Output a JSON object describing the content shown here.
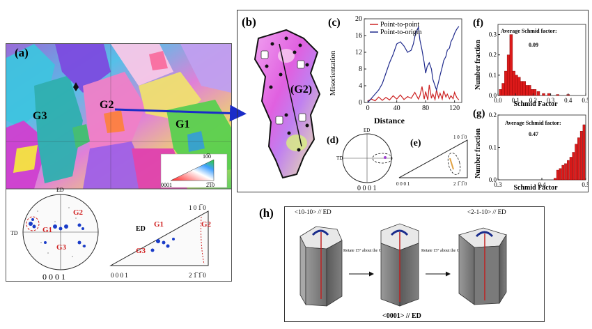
{
  "panel_a": {
    "label": "(a)",
    "grains": [
      "G1",
      "G2",
      "G3"
    ],
    "ipf_key": {
      "top": "10̅0",
      "left": "0001",
      "right": "2̅1̅0"
    },
    "pole_figure": {
      "td": "TD",
      "ed": "ED",
      "bottom": "0 0 0 1",
      "g1": "G1",
      "g2": "G2",
      "g3": "G3"
    },
    "ipf_triangle": {
      "ed": "ED",
      "top": "1 0 1̅ 0",
      "left": "0 0 0 1",
      "right": "2 1̅ 1̅ 0",
      "g1": "G1",
      "g2": "G2",
      "g3": "G3"
    }
  },
  "panel_b": {
    "label": "(b)",
    "grain": "(G2)"
  },
  "panel_c": {
    "label": "(c)",
    "legend": [
      "Point-to-point",
      "Point-to-origin"
    ],
    "xlabel": "Distance",
    "ylabel": "Misorientation",
    "xticks": [
      "0",
      "40",
      "80",
      "120"
    ],
    "yticks": [
      "0",
      "4",
      "8",
      "12",
      "16",
      "20"
    ],
    "colors": {
      "point_to_point": "#cc2222",
      "point_to_origin": "#1f2a8c"
    }
  },
  "panel_d": {
    "label": "(d)",
    "ed": "ED",
    "td": "TD",
    "bottom": "0 0 0 1"
  },
  "panel_e": {
    "label": "(e)",
    "top": "1 0 1̅ 0",
    "left": "0 0 0 1",
    "right": "2 1̅ 1̅ 0"
  },
  "panel_f": {
    "label": "(f)",
    "title": "Average Schmid factor:",
    "avg": "0.09",
    "ylabel": "Number fraction",
    "xlabel": "Schmid Factor",
    "xticks": [
      "0.0",
      "0.1",
      "0.2",
      "0.3",
      "0.4",
      "0.5"
    ],
    "yticks": [
      "0.0",
      "0.1",
      "0.2",
      "0.3"
    ]
  },
  "panel_g": {
    "label": "(g)",
    "title": "Average Schmid factor:",
    "avg": "0.47",
    "ylabel": "Number fraction",
    "xlabel": "Schmid Factor",
    "xticks": [
      "0.3",
      "0.4",
      "0.5"
    ],
    "yticks": [
      "0.0",
      "0.1",
      "0.2"
    ]
  },
  "panel_h": {
    "label": "(h)",
    "left_dir": "<10-10> // ED",
    "right_dir": "<2-1-10> // ED",
    "rotate_text": "Rotate 15° about the C axis",
    "bottom": "<0001> // ED"
  },
  "chart_data": [
    {
      "type": "line",
      "title": "",
      "xlabel": "Distance",
      "ylabel": "Misorientation",
      "xlim": [
        -5,
        130
      ],
      "ylim": [
        0,
        20
      ],
      "series": [
        {
          "name": "Point-to-point",
          "color": "#cc2222",
          "x": [
            0,
            5,
            10,
            15,
            20,
            25,
            30,
            35,
            40,
            45,
            50,
            55,
            60,
            65,
            70,
            72,
            75,
            78,
            80,
            83,
            85,
            88,
            90,
            93,
            95,
            98,
            100,
            103,
            105,
            108,
            110,
            113,
            115,
            118,
            120,
            123,
            126
          ],
          "y": [
            0.4,
            0.8,
            0.4,
            1.3,
            0.5,
            1.2,
            0.6,
            1.6,
            0.8,
            1.8,
            0.7,
            1.4,
            1.0,
            2.4,
            0.8,
            1.6,
            3.8,
            0.8,
            2.6,
            0.6,
            4.2,
            1.0,
            2.0,
            0.7,
            3.0,
            1.1,
            2.2,
            0.8,
            2.8,
            1.3,
            2.0,
            0.9,
            1.6,
            0.9,
            2.4,
            1.2,
            0.6
          ]
        },
        {
          "name": "Point-to-origin",
          "color": "#1f2a8c",
          "x": [
            0,
            5,
            10,
            15,
            20,
            25,
            30,
            35,
            40,
            45,
            50,
            55,
            60,
            63,
            66,
            70,
            72,
            75,
            78,
            80,
            82,
            85,
            88,
            90,
            93,
            95,
            98,
            100,
            103,
            105,
            108,
            110,
            113,
            115,
            118,
            120,
            123,
            126
          ],
          "y": [
            0,
            1.0,
            2.0,
            3.0,
            4.5,
            7.0,
            9.5,
            11.5,
            14.0,
            14.5,
            13.5,
            12.0,
            12.5,
            14.0,
            16.5,
            18.0,
            15.0,
            12.5,
            9.5,
            7.0,
            8.5,
            9.5,
            8.0,
            5.5,
            4.0,
            3.0,
            5.0,
            6.5,
            8.5,
            10.0,
            11.0,
            12.5,
            13.0,
            14.5,
            15.5,
            16.5,
            17.5,
            18.2
          ]
        }
      ]
    },
    {
      "type": "bar",
      "title": "Average Schmid factor:",
      "xlabel": "Schmid Factor",
      "ylabel": "Number fraction",
      "xlim": [
        0,
        0.5
      ],
      "ylim": [
        0,
        0.35
      ],
      "x": [
        0.015,
        0.03,
        0.045,
        0.06,
        0.075,
        0.09,
        0.105,
        0.12,
        0.135,
        0.15,
        0.165,
        0.18,
        0.195,
        0.21,
        0.23,
        0.26,
        0.29,
        0.34,
        0.4
      ],
      "values": [
        0.03,
        0.06,
        0.12,
        0.2,
        0.3,
        0.12,
        0.1,
        0.09,
        0.07,
        0.07,
        0.05,
        0.05,
        0.03,
        0.03,
        0.02,
        0.01,
        0.01,
        0.005,
        0.005
      ]
    },
    {
      "type": "bar",
      "title": "Average Schmid factor:",
      "xlabel": "Schmid Factor",
      "ylabel": "Number fraction",
      "xlim": [
        0.3,
        0.5
      ],
      "ylim": [
        0,
        0.2
      ],
      "x": [
        0.43,
        0.436,
        0.442,
        0.448,
        0.454,
        0.46,
        0.466,
        0.472,
        0.478,
        0.484,
        0.49,
        0.496
      ],
      "values": [
        0.005,
        0.03,
        0.035,
        0.045,
        0.05,
        0.06,
        0.07,
        0.085,
        0.11,
        0.13,
        0.15,
        0.17
      ]
    }
  ]
}
